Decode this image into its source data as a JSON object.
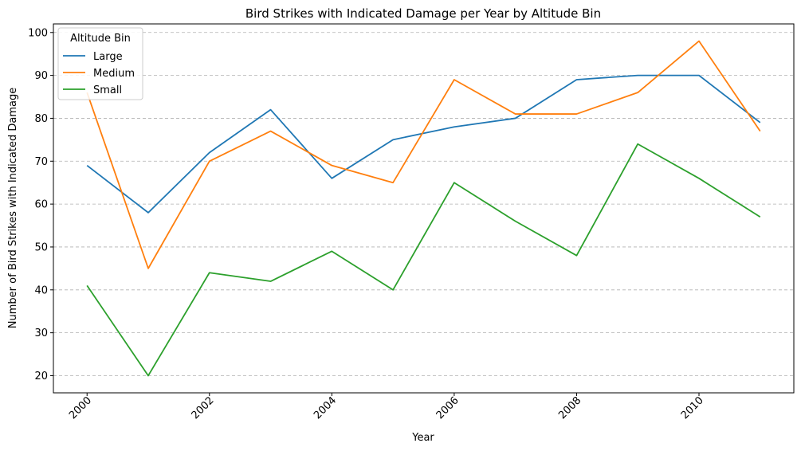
{
  "chart_data": {
    "type": "line",
    "title": "Bird Strikes with Indicated Damage per Year by Altitude Bin",
    "xlabel": "Year",
    "ylabel": "Number of Bird Strikes with Indicated Damage",
    "x": [
      2000,
      2001,
      2002,
      2003,
      2004,
      2005,
      2006,
      2007,
      2008,
      2009,
      2010,
      2011
    ],
    "xticks": [
      "2000",
      "2002",
      "2004",
      "2006",
      "2008",
      "2010"
    ],
    "xlim": [
      1999.45,
      2011.55
    ],
    "yticks": [
      "20",
      "30",
      "40",
      "50",
      "60",
      "70",
      "80",
      "90",
      "100"
    ],
    "ylim": [
      16,
      102
    ],
    "grid": "horizontal dashed",
    "legend": {
      "title": "Altitude Bin",
      "placement": "top-left"
    },
    "series": [
      {
        "name": "Large",
        "color": "#1f77b4",
        "values": [
          69,
          58,
          72,
          82,
          66,
          75,
          78,
          80,
          89,
          90,
          90,
          79
        ]
      },
      {
        "name": "Medium",
        "color": "#ff7f0e",
        "values": [
          86,
          45,
          70,
          77,
          69,
          65,
          89,
          81,
          81,
          86,
          98,
          77
        ]
      },
      {
        "name": "Small",
        "color": "#2ca02c",
        "values": [
          41,
          20,
          44,
          42,
          49,
          40,
          65,
          56,
          48,
          74,
          66,
          57
        ]
      }
    ]
  }
}
